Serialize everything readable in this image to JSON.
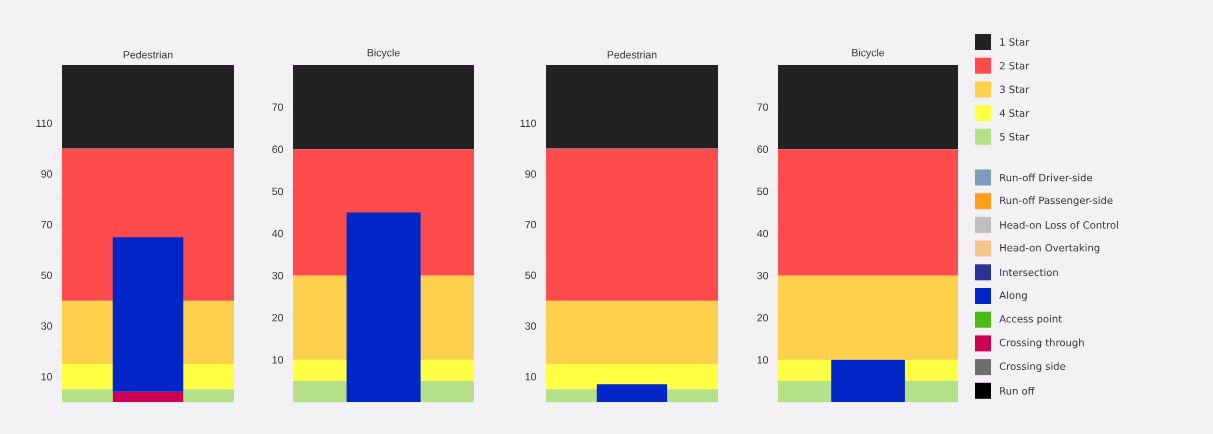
{
  "chart_data": [
    {
      "type": "bar",
      "stacked": true,
      "title": "Pedestrian",
      "categories": [
        null
      ],
      "ylim": [
        0,
        133
      ],
      "yticks": [
        10,
        {
          "value": 20,
          "label": null
        },
        30,
        {
          "value": 40,
          "label": null
        },
        50,
        {
          "value": 60,
          "label": null
        },
        70,
        {
          "value": 80,
          "label": null
        },
        90,
        {
          "value": 100,
          "label": null
        },
        110,
        {
          "value": 120,
          "label": null
        },
        {
          "value": 130,
          "label": null
        }
      ],
      "bands": [
        {
          "axis": "y",
          "from": 0,
          "to": 5,
          "color": "#b5e08a"
        },
        {
          "axis": "y",
          "from": 5,
          "to": 15,
          "color": "#ffff44"
        },
        {
          "axis": "y",
          "from": 15,
          "to": 40,
          "color": "#ffd04b"
        },
        {
          "axis": "y",
          "from": 40,
          "to": 100,
          "color": "#ff4b4b"
        },
        {
          "axis": "y",
          "from": 100,
          "to": 133,
          "color": "#222222"
        }
      ],
      "series": [
        {
          "color": "#cc0055",
          "values": [
            4
          ]
        },
        {
          "color": "#0026c8",
          "values": [
            61
          ]
        }
      ]
    },
    {
      "type": "bar",
      "stacked": true,
      "title": "Bicycle",
      "categories": [
        null
      ],
      "ylim": [
        0,
        80
      ],
      "yticks": [
        10,
        20,
        30,
        40,
        50,
        60,
        70
      ],
      "bands": [
        {
          "axis": "y",
          "from": 0,
          "to": 5,
          "color": "#b5e08a"
        },
        {
          "axis": "y",
          "from": 5,
          "to": 10,
          "color": "#ffff44"
        },
        {
          "axis": "y",
          "from": 10,
          "to": 30,
          "color": "#ffd04b"
        },
        {
          "axis": "y",
          "from": 30,
          "to": 60,
          "color": "#ff4b4b"
        },
        {
          "axis": "y",
          "from": 60,
          "to": 80,
          "color": "#222222"
        }
      ],
      "series": [
        {
          "color": "#0026c8",
          "values": [
            45
          ]
        }
      ]
    },
    {
      "type": "bar",
      "stacked": true,
      "title": "Pedestrian",
      "categories": [
        null
      ],
      "ylim": [
        0,
        133
      ],
      "yticks": [
        10,
        {
          "value": 20,
          "label": null
        },
        30,
        {
          "value": 40,
          "label": null
        },
        50,
        {
          "value": 60,
          "label": null
        },
        70,
        {
          "value": 80,
          "label": null
        },
        90,
        {
          "value": 100,
          "label": null
        },
        110,
        {
          "value": 120,
          "label": null
        },
        {
          "value": 130,
          "label": null
        }
      ],
      "bands": [
        {
          "axis": "y",
          "from": 0,
          "to": 5,
          "color": "#b5e08a"
        },
        {
          "axis": "y",
          "from": 5,
          "to": 15,
          "color": "#ffff44"
        },
        {
          "axis": "y",
          "from": 15,
          "to": 40,
          "color": "#ffd04b"
        },
        {
          "axis": "y",
          "from": 40,
          "to": 100,
          "color": "#ff4b4b"
        },
        {
          "axis": "y",
          "from": 100,
          "to": 133,
          "color": "#222222"
        }
      ],
      "series": [
        {
          "color": "#0026c8",
          "values": [
            7
          ]
        }
      ]
    },
    {
      "type": "bar",
      "stacked": true,
      "title": "Bicycle",
      "categories": [
        null
      ],
      "ylim": [
        0,
        80
      ],
      "yticks": [
        10,
        20,
        30,
        40,
        50,
        60,
        70
      ],
      "legend": "right",
      "bands": [
        {
          "axis": "y",
          "from": 0,
          "to": 5,
          "color": "#b5e08a",
          "label": "5 Star"
        },
        {
          "axis": "y",
          "from": 5,
          "to": 10,
          "color": "#ffff44",
          "label": "4 Star"
        },
        {
          "axis": "y",
          "from": 10,
          "to": 30,
          "color": "#ffd04b",
          "label": "3 Star"
        },
        {
          "axis": "y",
          "from": 30,
          "to": 60,
          "color": "#ff4b4b",
          "label": "2 Star"
        },
        {
          "axis": "y",
          "from": 60,
          "to": 80,
          "color": "#222222",
          "label": "1 Star"
        }
      ],
      "series": [
        {
          "name": "Run-off Driver-side",
          "color": "#7f9cc0",
          "values": [
            null
          ]
        },
        {
          "name": "Run-off Passenger-side",
          "color": "#ff9f1a",
          "values": [
            null
          ]
        },
        {
          "name": "Head-on Loss of Control",
          "color": "#bfbfbf",
          "values": [
            null
          ]
        },
        {
          "name": "Head-on Overtaking",
          "color": "#f5c48a",
          "values": [
            null
          ]
        },
        {
          "name": "Intersection",
          "color": "#2e3192",
          "values": [
            null
          ]
        },
        {
          "name": "Along",
          "color": "#0026c8",
          "values": [
            10
          ]
        },
        {
          "name": "Access point",
          "color": "#4cbb17",
          "values": [
            null
          ]
        },
        {
          "name": "Crossing through",
          "color": "#cc0055",
          "values": [
            null
          ]
        },
        {
          "name": "Crossing side",
          "color": "#6e6e6e",
          "values": [
            null
          ]
        },
        {
          "name": "Run off",
          "color": "#000000",
          "values": [
            null
          ]
        }
      ]
    }
  ]
}
